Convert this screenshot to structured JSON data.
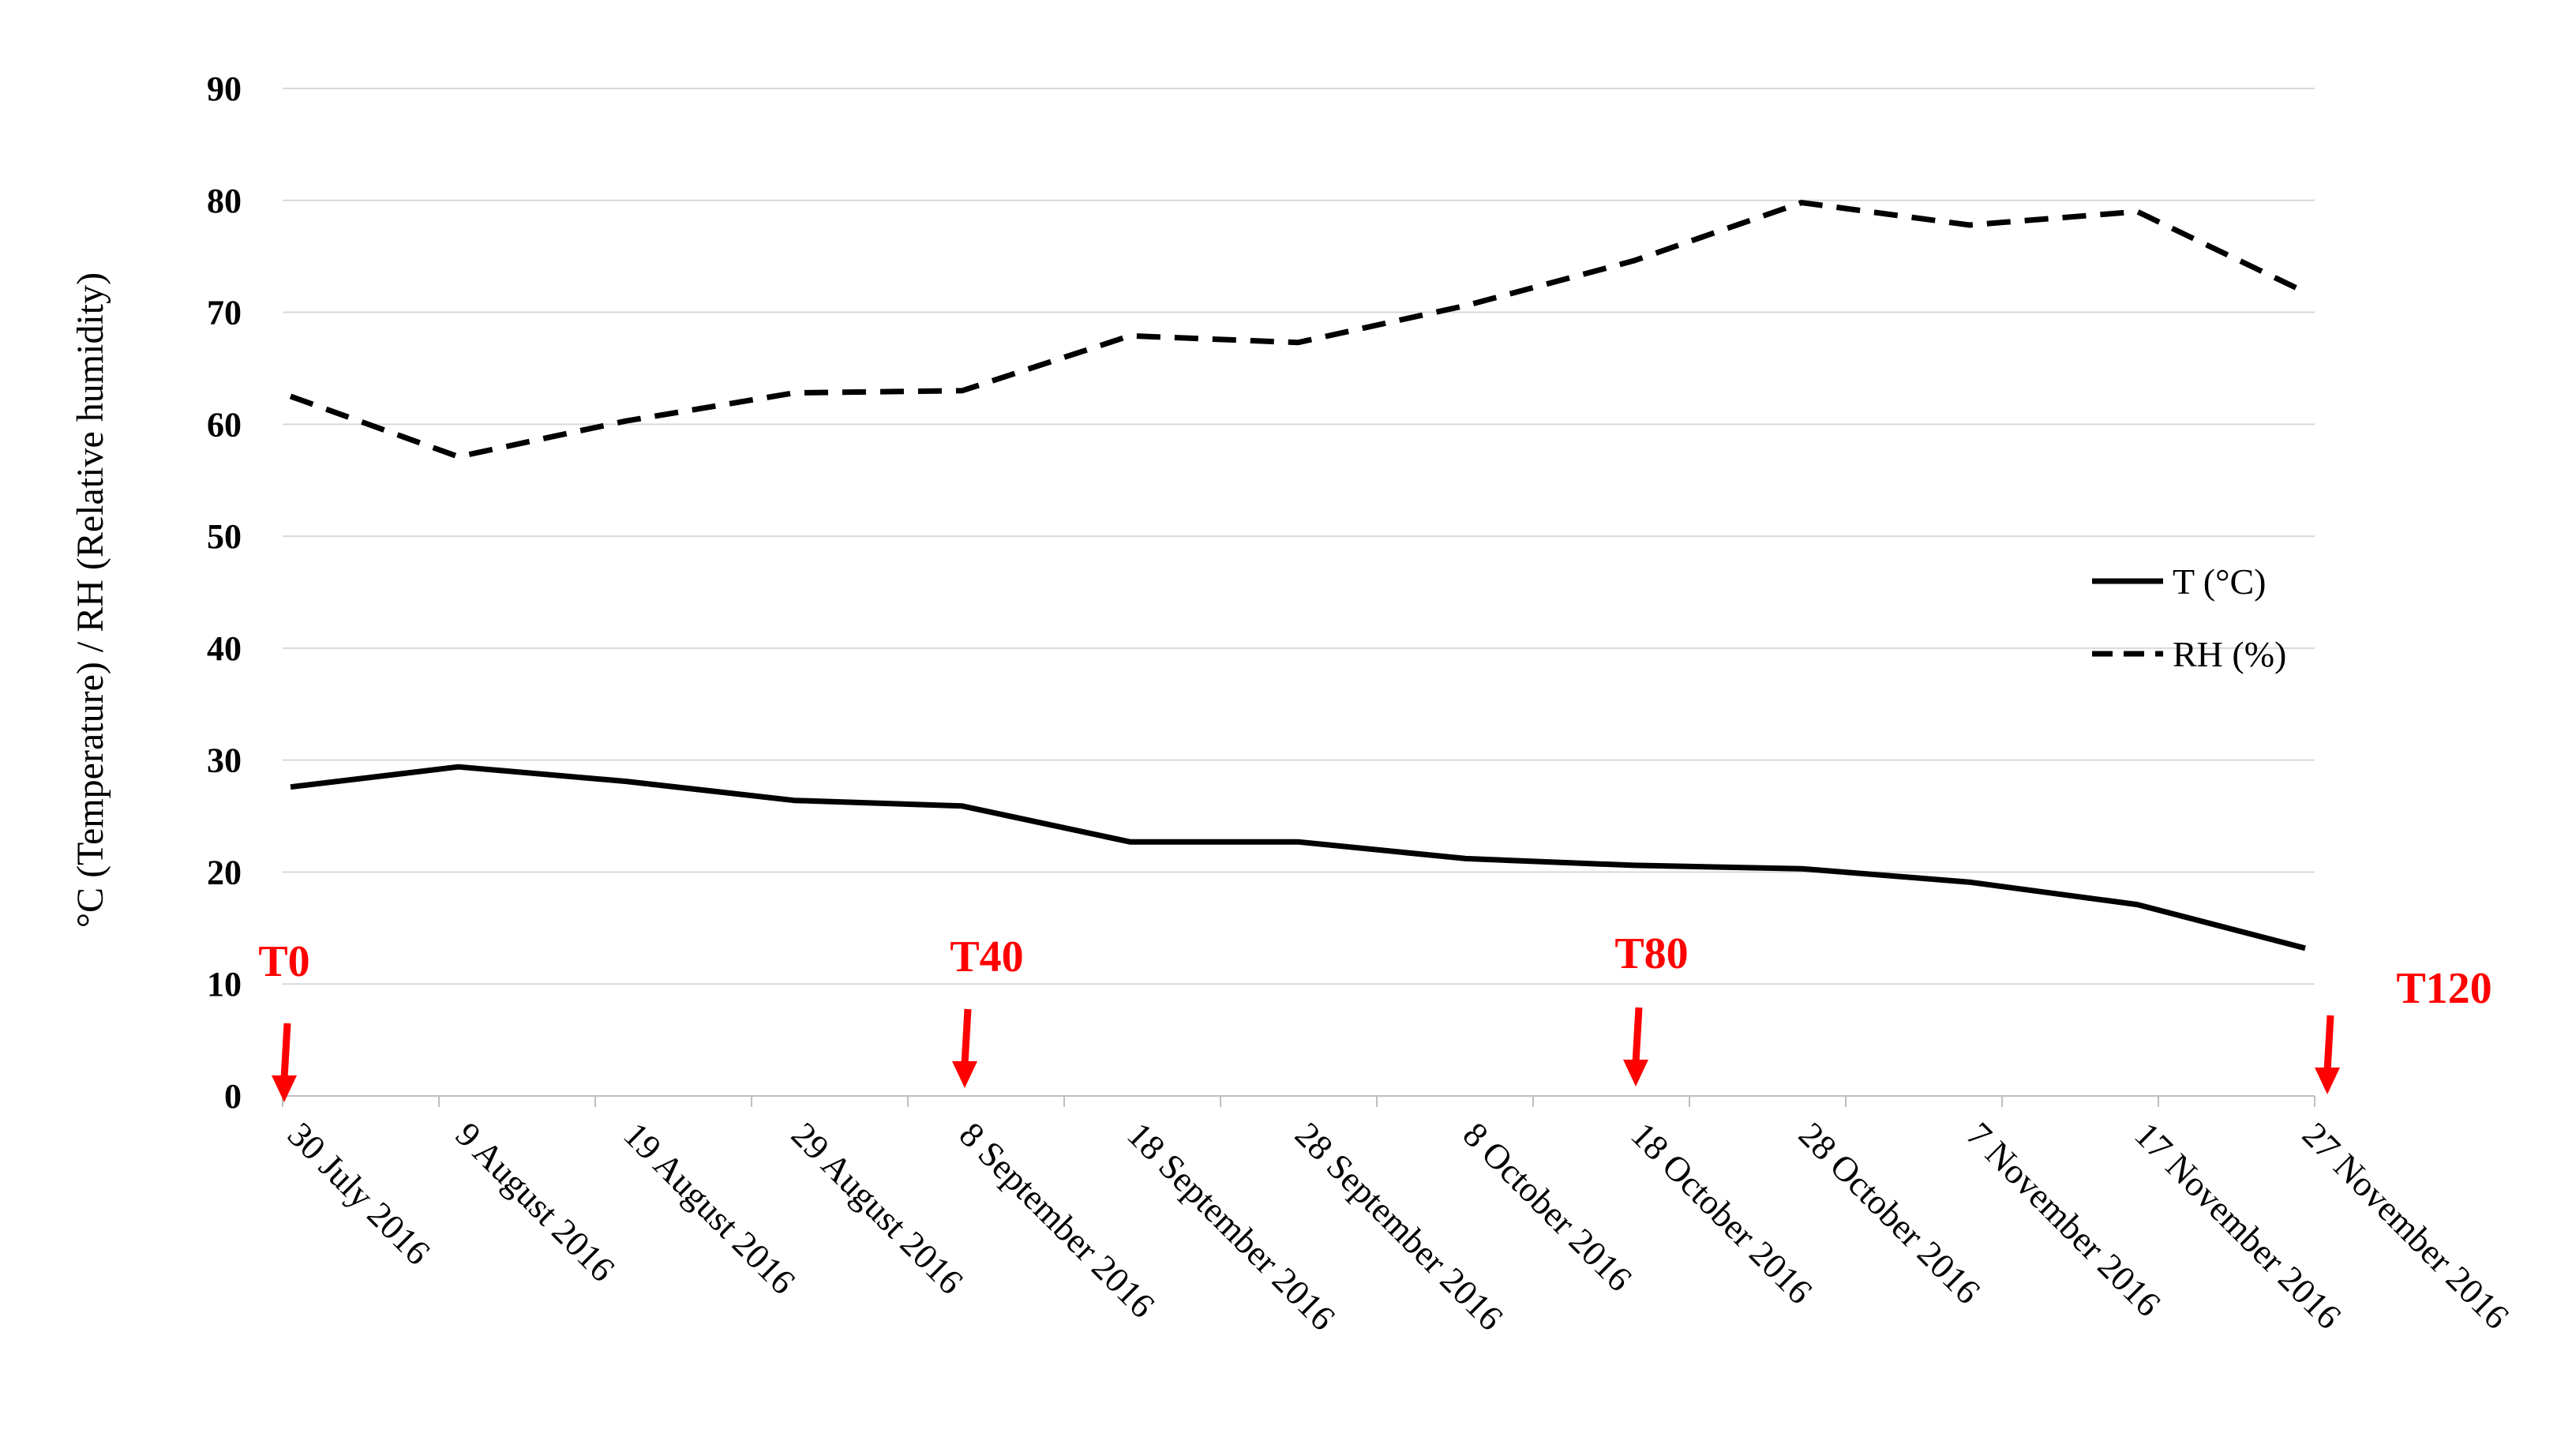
{
  "chart_data": {
    "type": "line",
    "title": "",
    "xlabel": "",
    "ylabel": "°C (Temperature) / RH (Relative humidity)",
    "categories": [
      "30 July 2016",
      "9 August 2016",
      "19 August 2016",
      "29 August 2016",
      "8 September 2016",
      "18 September 2016",
      "28 September 2016",
      "8 October 2016",
      "18 October 2016",
      "28 October 2016",
      "7 November 2016",
      "17 November 2016",
      "27 November 2016"
    ],
    "yticks": [
      "0",
      "10",
      "20",
      "30",
      "40",
      "50",
      "60",
      "70",
      "80",
      "90"
    ],
    "ylim": [
      0,
      90
    ],
    "grid": true,
    "legend_position": "right",
    "series": [
      {
        "name": "T (°C)",
        "style": "solid",
        "color": "#000000",
        "values": [
          27.6,
          29.4,
          28.1,
          26.4,
          25.9,
          22.7,
          22.7,
          21.2,
          20.6,
          20.3,
          19.1,
          17.1,
          13.2
        ]
      },
      {
        "name": "RH (%)",
        "style": "dashed",
        "color": "#000000",
        "values": [
          62.5,
          57.1,
          60.3,
          62.8,
          63.0,
          67.9,
          67.3,
          70.6,
          74.6,
          79.8,
          77.8,
          79.0,
          71.8
        ]
      }
    ],
    "annotations": [
      {
        "label": "T0",
        "x": "30 July 2016",
        "color": "#ff0000"
      },
      {
        "label": "T40",
        "x": "8 September 2016",
        "color": "#ff0000"
      },
      {
        "label": "T80",
        "x": "18 October 2016",
        "color": "#ff0000"
      },
      {
        "label": "T120",
        "x": "27 November 2016",
        "color": "#ff0000"
      }
    ]
  }
}
